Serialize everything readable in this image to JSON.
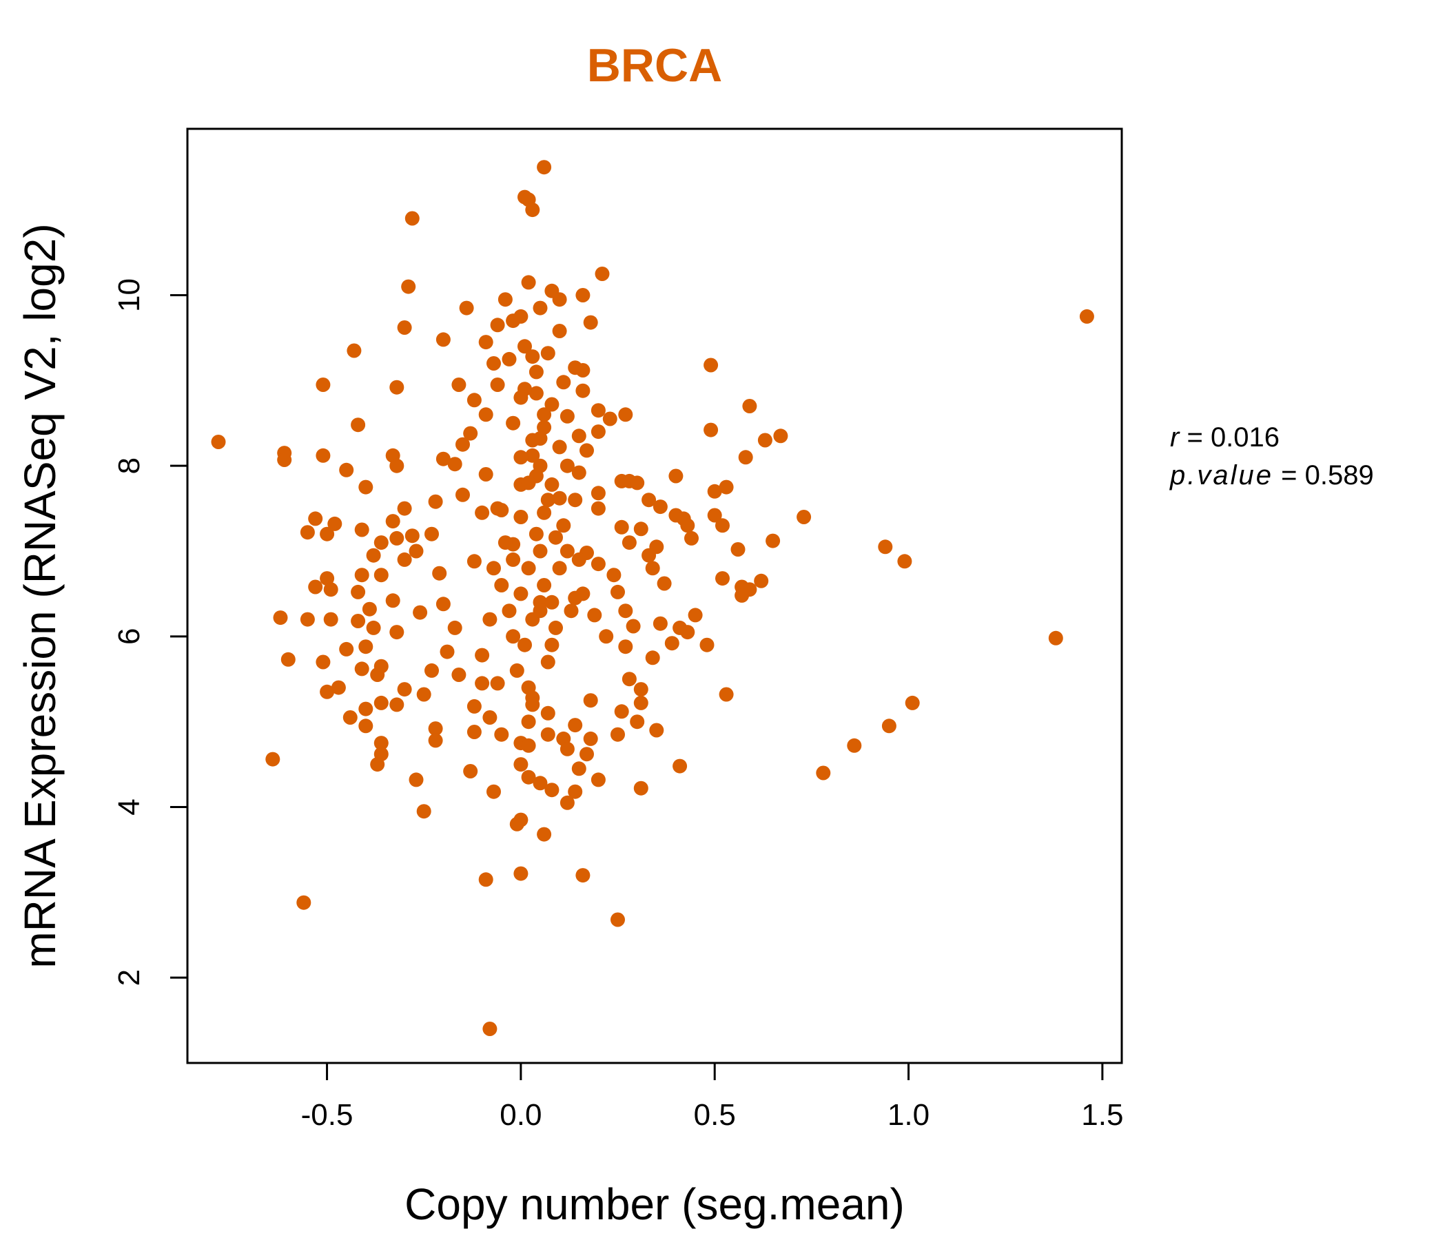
{
  "chart_data": {
    "type": "scatter",
    "title": "BRCA",
    "xlabel": "Copy number (seg.mean)",
    "ylabel": "mRNA Expression (RNASeq V2, log2)",
    "xlim": [
      -0.86,
      1.55
    ],
    "ylim": [
      1.0,
      11.95
    ],
    "x_ticks": [
      {
        "value": -0.5,
        "label": "-0.5"
      },
      {
        "value": 0.0,
        "label": "0.0"
      },
      {
        "value": 0.5,
        "label": "0.5"
      },
      {
        "value": 1.0,
        "label": "1.0"
      },
      {
        "value": 1.5,
        "label": "1.5"
      }
    ],
    "y_ticks": [
      {
        "value": 2,
        "label": "2"
      },
      {
        "value": 4,
        "label": "4"
      },
      {
        "value": 6,
        "label": "6"
      },
      {
        "value": 8,
        "label": "8"
      },
      {
        "value": 10,
        "label": "10"
      }
    ],
    "grid": false,
    "legend": "none",
    "point_color": "#d95f02",
    "stats": {
      "r_label": "r",
      "r_value": "0.016",
      "p_label": "p.value",
      "p_value": "0.589"
    },
    "points": [
      [
        0.06,
        11.5
      ],
      [
        0.01,
        11.15
      ],
      [
        0.02,
        11.12
      ],
      [
        0.03,
        11.0
      ],
      [
        -0.28,
        10.9
      ],
      [
        0.21,
        10.25
      ],
      [
        -0.29,
        10.1
      ],
      [
        0.02,
        10.15
      ],
      [
        0.08,
        10.05
      ],
      [
        0.16,
        10.0
      ],
      [
        0.1,
        9.95
      ],
      [
        -0.04,
        9.95
      ],
      [
        -0.14,
        9.85
      ],
      [
        0.05,
        9.85
      ],
      [
        0.0,
        9.75
      ],
      [
        -0.02,
        9.7
      ],
      [
        0.18,
        9.68
      ],
      [
        -0.06,
        9.65
      ],
      [
        -0.3,
        9.62
      ],
      [
        0.1,
        9.58
      ],
      [
        -0.2,
        9.48
      ],
      [
        -0.09,
        9.45
      ],
      [
        0.01,
        9.4
      ],
      [
        -0.43,
        9.35
      ],
      [
        0.07,
        9.32
      ],
      [
        0.03,
        9.28
      ],
      [
        -0.03,
        9.25
      ],
      [
        -0.07,
        9.2
      ],
      [
        0.14,
        9.15
      ],
      [
        0.16,
        9.12
      ],
      [
        0.49,
        9.18
      ],
      [
        -0.51,
        8.95
      ],
      [
        -0.16,
        8.95
      ],
      [
        -0.32,
        8.92
      ],
      [
        -0.06,
        8.95
      ],
      [
        0.11,
        8.98
      ],
      [
        0.16,
        8.88
      ],
      [
        0.04,
        8.85
      ],
      [
        -0.12,
        8.77
      ],
      [
        0.0,
        8.8
      ],
      [
        0.08,
        8.72
      ],
      [
        0.59,
        8.7
      ],
      [
        0.2,
        8.65
      ],
      [
        0.27,
        8.6
      ],
      [
        0.23,
        8.55
      ],
      [
        -0.09,
        8.6
      ],
      [
        0.12,
        8.58
      ],
      [
        -0.02,
        8.5
      ],
      [
        0.06,
        8.45
      ],
      [
        -0.42,
        8.48
      ],
      [
        0.49,
        8.42
      ],
      [
        0.2,
        8.4
      ],
      [
        0.15,
        8.35
      ],
      [
        0.67,
        8.35
      ],
      [
        0.63,
        8.3
      ],
      [
        -0.13,
        8.38
      ],
      [
        0.05,
        8.32
      ],
      [
        -0.78,
        8.28
      ],
      [
        -0.15,
        8.25
      ],
      [
        0.1,
        8.22
      ],
      [
        0.17,
        8.18
      ],
      [
        -0.61,
        8.15
      ],
      [
        -0.51,
        8.12
      ],
      [
        0.03,
        8.12
      ],
      [
        -0.33,
        8.12
      ],
      [
        0.58,
        8.1
      ],
      [
        -0.2,
        8.08
      ],
      [
        -0.61,
        8.07
      ],
      [
        -0.17,
        8.02
      ],
      [
        0.12,
        8.0
      ],
      [
        -0.32,
        8.0
      ],
      [
        -0.45,
        7.95
      ],
      [
        0.15,
        7.92
      ],
      [
        -0.09,
        7.9
      ],
      [
        0.04,
        7.88
      ],
      [
        0.4,
        7.88
      ],
      [
        0.26,
        7.82
      ],
      [
        0.28,
        7.82
      ],
      [
        0.3,
        7.8
      ],
      [
        0.0,
        7.78
      ],
      [
        0.08,
        7.78
      ],
      [
        -0.4,
        7.75
      ],
      [
        0.53,
        7.75
      ],
      [
        0.5,
        7.7
      ],
      [
        0.2,
        7.68
      ],
      [
        -0.15,
        7.66
      ],
      [
        0.1,
        7.62
      ],
      [
        0.33,
        7.6
      ],
      [
        -0.22,
        7.58
      ],
      [
        0.36,
        7.52
      ],
      [
        -0.3,
        7.5
      ],
      [
        0.2,
        7.5
      ],
      [
        -0.05,
        7.48
      ],
      [
        0.06,
        7.45
      ],
      [
        -0.1,
        7.45
      ],
      [
        0.4,
        7.42
      ],
      [
        0.42,
        7.38
      ],
      [
        0.5,
        7.42
      ],
      [
        0.73,
        7.4
      ],
      [
        -0.53,
        7.38
      ],
      [
        -0.33,
        7.35
      ],
      [
        -0.48,
        7.32
      ],
      [
        0.52,
        7.3
      ],
      [
        0.43,
        7.3
      ],
      [
        0.26,
        7.28
      ],
      [
        0.31,
        7.26
      ],
      [
        -0.41,
        7.25
      ],
      [
        -0.55,
        7.22
      ],
      [
        -0.5,
        7.2
      ],
      [
        -0.23,
        7.2
      ],
      [
        -0.28,
        7.18
      ],
      [
        0.09,
        7.16
      ],
      [
        -0.32,
        7.15
      ],
      [
        0.44,
        7.15
      ],
      [
        0.65,
        7.12
      ],
      [
        -0.36,
        7.1
      ],
      [
        0.28,
        7.1
      ],
      [
        -0.02,
        7.08
      ],
      [
        0.94,
        7.05
      ],
      [
        0.35,
        7.05
      ],
      [
        0.56,
        7.02
      ],
      [
        -0.27,
        7.0
      ],
      [
        0.17,
        6.98
      ],
      [
        0.33,
        6.95
      ],
      [
        -0.38,
        6.95
      ],
      [
        -0.3,
        6.9
      ],
      [
        0.99,
        6.88
      ],
      [
        -0.12,
        6.88
      ],
      [
        0.2,
        6.85
      ],
      [
        0.34,
        6.8
      ],
      [
        -0.41,
        6.72
      ],
      [
        -0.36,
        6.72
      ],
      [
        -0.21,
        6.74
      ],
      [
        0.24,
        6.72
      ],
      [
        0.52,
        6.68
      ],
      [
        -0.5,
        6.68
      ],
      [
        0.62,
        6.65
      ],
      [
        0.37,
        6.62
      ],
      [
        -0.53,
        6.58
      ],
      [
        0.57,
        6.58
      ],
      [
        -0.49,
        6.55
      ],
      [
        0.59,
        6.55
      ],
      [
        0.25,
        6.52
      ],
      [
        -0.42,
        6.52
      ],
      [
        0.57,
        6.48
      ],
      [
        0.14,
        6.45
      ],
      [
        -0.33,
        6.42
      ],
      [
        0.05,
        6.4
      ],
      [
        -0.2,
        6.38
      ],
      [
        -0.39,
        6.32
      ],
      [
        0.27,
        6.3
      ],
      [
        -0.26,
        6.28
      ],
      [
        0.45,
        6.25
      ],
      [
        0.19,
        6.25
      ],
      [
        -0.62,
        6.22
      ],
      [
        -0.49,
        6.2
      ],
      [
        -0.55,
        6.2
      ],
      [
        -0.42,
        6.18
      ],
      [
        0.36,
        6.15
      ],
      [
        0.29,
        6.12
      ],
      [
        -0.38,
        6.1
      ],
      [
        0.41,
        6.1
      ],
      [
        -0.17,
        6.1
      ],
      [
        0.43,
        6.05
      ],
      [
        -0.32,
        6.05
      ],
      [
        0.22,
        6.0
      ],
      [
        1.38,
        5.98
      ],
      [
        0.39,
        5.92
      ],
      [
        0.48,
        5.9
      ],
      [
        -0.45,
        5.85
      ],
      [
        0.27,
        5.88
      ],
      [
        -0.4,
        5.88
      ],
      [
        -0.19,
        5.82
      ],
      [
        -0.1,
        5.78
      ],
      [
        -0.6,
        5.73
      ],
      [
        0.34,
        5.75
      ],
      [
        -0.51,
        5.7
      ],
      [
        -0.36,
        5.65
      ],
      [
        -0.41,
        5.62
      ],
      [
        -0.23,
        5.6
      ],
      [
        -0.16,
        5.55
      ],
      [
        -0.37,
        5.55
      ],
      [
        0.28,
        5.5
      ],
      [
        -0.1,
        5.45
      ],
      [
        -0.06,
        5.45
      ],
      [
        -0.47,
        5.4
      ],
      [
        -0.5,
        5.35
      ],
      [
        0.31,
        5.38
      ],
      [
        -0.3,
        5.38
      ],
      [
        0.53,
        5.32
      ],
      [
        -0.25,
        5.32
      ],
      [
        0.03,
        5.28
      ],
      [
        0.18,
        5.25
      ],
      [
        0.31,
        5.22
      ],
      [
        -0.36,
        5.22
      ],
      [
        -0.32,
        5.2
      ],
      [
        -0.12,
        5.18
      ],
      [
        -0.4,
        5.15
      ],
      [
        0.26,
        5.12
      ],
      [
        0.07,
        5.1
      ],
      [
        -0.44,
        5.05
      ],
      [
        -0.08,
        5.05
      ],
      [
        0.3,
        5.0
      ],
      [
        0.02,
        5.0
      ],
      [
        0.14,
        4.96
      ],
      [
        -0.4,
        4.95
      ],
      [
        0.95,
        4.95
      ],
      [
        -0.22,
        4.92
      ],
      [
        0.35,
        4.9
      ],
      [
        -0.12,
        4.88
      ],
      [
        0.07,
        4.85
      ],
      [
        -0.05,
        4.85
      ],
      [
        0.25,
        4.85
      ],
      [
        0.11,
        4.8
      ],
      [
        0.18,
        4.8
      ],
      [
        -0.22,
        4.78
      ],
      [
        -0.36,
        4.75
      ],
      [
        0.86,
        4.72
      ],
      [
        0.0,
        4.75
      ],
      [
        0.02,
        4.72
      ],
      [
        0.12,
        4.68
      ],
      [
        -0.36,
        4.62
      ],
      [
        0.17,
        4.62
      ],
      [
        -0.64,
        4.56
      ],
      [
        0.0,
        4.5
      ],
      [
        -0.37,
        4.5
      ],
      [
        0.41,
        4.48
      ],
      [
        0.15,
        4.45
      ],
      [
        -0.13,
        4.42
      ],
      [
        0.78,
        4.4
      ],
      [
        0.02,
        4.35
      ],
      [
        -0.27,
        4.32
      ],
      [
        0.2,
        4.32
      ],
      [
        0.05,
        4.28
      ],
      [
        0.31,
        4.22
      ],
      [
        0.08,
        4.2
      ],
      [
        -0.07,
        4.18
      ],
      [
        0.14,
        4.18
      ],
      [
        0.12,
        4.05
      ],
      [
        -0.25,
        3.95
      ],
      [
        0.0,
        3.85
      ],
      [
        -0.01,
        3.8
      ],
      [
        0.06,
        3.68
      ],
      [
        -0.56,
        2.88
      ],
      [
        0.0,
        3.22
      ],
      [
        0.16,
        3.2
      ],
      [
        -0.09,
        3.15
      ],
      [
        0.25,
        2.68
      ],
      [
        -0.08,
        1.4
      ],
      [
        1.46,
        9.75
      ],
      [
        1.01,
        5.22
      ],
      [
        0.0,
        6.5
      ],
      [
        0.02,
        6.8
      ],
      [
        0.05,
        7.0
      ],
      [
        0.03,
        6.2
      ],
      [
        0.06,
        6.6
      ],
      [
        -0.02,
        6.9
      ],
      [
        0.04,
        7.2
      ],
      [
        0.08,
        6.4
      ],
      [
        0.0,
        7.4
      ],
      [
        0.07,
        7.6
      ],
      [
        -0.03,
        6.3
      ],
      [
        0.1,
        6.8
      ],
      [
        0.12,
        7.0
      ],
      [
        -0.05,
        6.6
      ],
      [
        0.09,
        6.1
      ],
      [
        0.01,
        5.9
      ],
      [
        -0.04,
        7.1
      ],
      [
        0.11,
        7.3
      ],
      [
        0.02,
        7.8
      ],
      [
        0.05,
        8.0
      ],
      [
        0.03,
        8.3
      ],
      [
        0.06,
        8.6
      ],
      [
        0.01,
        8.9
      ],
      [
        0.04,
        9.1
      ],
      [
        -0.01,
        5.6
      ],
      [
        0.07,
        5.7
      ],
      [
        0.02,
        5.4
      ],
      [
        0.13,
        6.3
      ],
      [
        0.15,
        6.9
      ],
      [
        -0.07,
        6.8
      ],
      [
        -0.08,
        6.2
      ],
      [
        0.14,
        7.6
      ],
      [
        -0.06,
        7.5
      ],
      [
        0.16,
        6.5
      ],
      [
        0.08,
        5.9
      ],
      [
        0.03,
        5.2
      ],
      [
        -0.02,
        6.0
      ],
      [
        0.0,
        8.1
      ],
      [
        0.05,
        6.3
      ]
    ]
  }
}
